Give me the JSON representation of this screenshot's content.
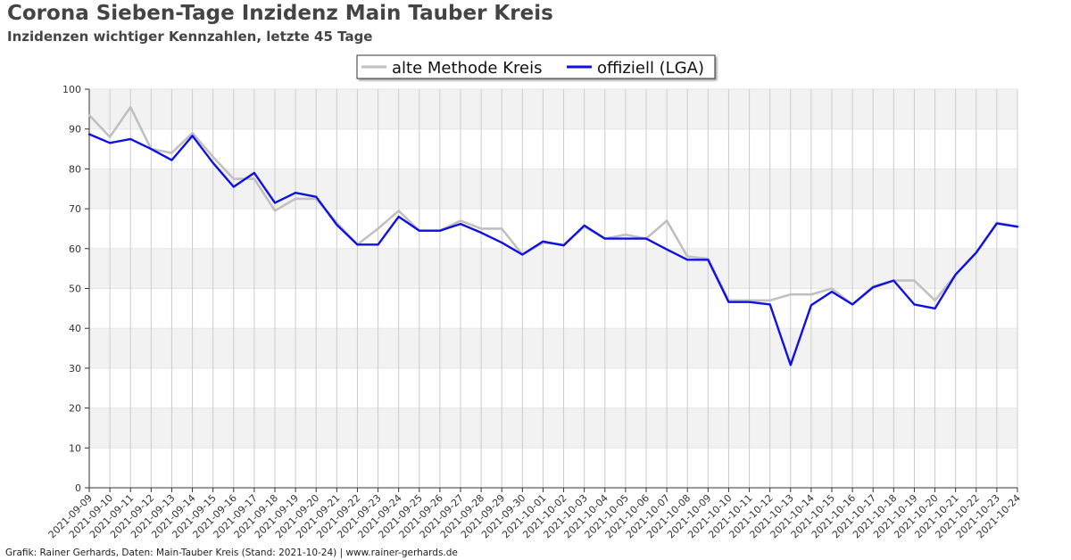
{
  "header": {
    "title": "Corona Sieben-Tage Inzidenz Main Tauber Kreis",
    "subtitle": "Inzidenzen wichtiger Kennzahlen, letzte 45 Tage"
  },
  "footer": {
    "text": "Grafik: Rainer Gerhards, Daten: Main-Tauber Kreis (Stand: 2021-10-24) | www.rainer-gerhards.de"
  },
  "colors": {
    "alt_series": "#c0c0c0",
    "official_series": "#1010e0",
    "band": "#f2f2f2",
    "grid": "#cccccc"
  },
  "chart_data": {
    "type": "line",
    "title": "Corona Sieben-Tage Inzidenz Main Tauber Kreis",
    "subtitle": "Inzidenzen wichtiger Kennzahlen, letzte 45 Tage",
    "xlabel": "",
    "ylabel": "",
    "ylim": [
      0,
      100
    ],
    "yticks": [
      0,
      10,
      20,
      30,
      40,
      50,
      60,
      70,
      80,
      90,
      100
    ],
    "grid": true,
    "legend_position": "top-center",
    "categories": [
      "2021-09-09",
      "2021-09-10",
      "2021-09-11",
      "2021-09-12",
      "2021-09-13",
      "2021-09-14",
      "2021-09-15",
      "2021-09-16",
      "2021-09-17",
      "2021-09-18",
      "2021-09-19",
      "2021-09-20",
      "2021-09-21",
      "2021-09-22",
      "2021-09-23",
      "2021-09-24",
      "2021-09-25",
      "2021-09-26",
      "2021-09-27",
      "2021-09-28",
      "2021-09-29",
      "2021-09-30",
      "2021-10-01",
      "2021-10-02",
      "2021-10-03",
      "2021-10-04",
      "2021-10-05",
      "2021-10-06",
      "2021-10-07",
      "2021-10-08",
      "2021-10-09",
      "2021-10-10",
      "2021-10-11",
      "2021-10-12",
      "2021-10-13",
      "2021-10-14",
      "2021-10-15",
      "2021-10-16",
      "2021-10-17",
      "2021-10-18",
      "2021-10-19",
      "2021-10-20",
      "2021-10-21",
      "2021-10-22",
      "2021-10-23",
      "2021-10-24"
    ],
    "series": [
      {
        "name": "alte Methode Kreis",
        "color": "#c0c0c0",
        "values": [
          93.5,
          88.0,
          95.5,
          85.0,
          84.0,
          89.0,
          83.0,
          77.5,
          77.5,
          69.5,
          72.5,
          72.5,
          66.5,
          61.0,
          65.0,
          69.5,
          64.5,
          64.5,
          67.0,
          65.0,
          65.0,
          58.5,
          61.5,
          61.0,
          65.5,
          62.5,
          63.5,
          62.5,
          67.0,
          58.0,
          57.5,
          47.0,
          47.0,
          47.0,
          48.5,
          48.5,
          50.0,
          46.0,
          50.5,
          52.0,
          52.0,
          47.0,
          53.5,
          59.0,
          66.5,
          65.5
        ]
      },
      {
        "name": "offiziell (LGA)",
        "color": "#1010e0",
        "values": [
          88.7,
          86.5,
          87.5,
          85.0,
          82.2,
          88.3,
          81.5,
          75.5,
          79.0,
          71.5,
          74.0,
          73.0,
          66.0,
          61.0,
          61.0,
          68.0,
          64.5,
          64.5,
          66.2,
          64.0,
          61.5,
          58.5,
          61.8,
          60.8,
          65.8,
          62.5,
          62.5,
          62.5,
          59.8,
          57.2,
          57.2,
          46.6,
          46.6,
          46.0,
          30.8,
          45.8,
          49.2,
          46.0,
          50.3,
          52.0,
          46.0,
          45.0,
          53.5,
          59.0,
          66.3,
          65.5
        ]
      }
    ]
  }
}
